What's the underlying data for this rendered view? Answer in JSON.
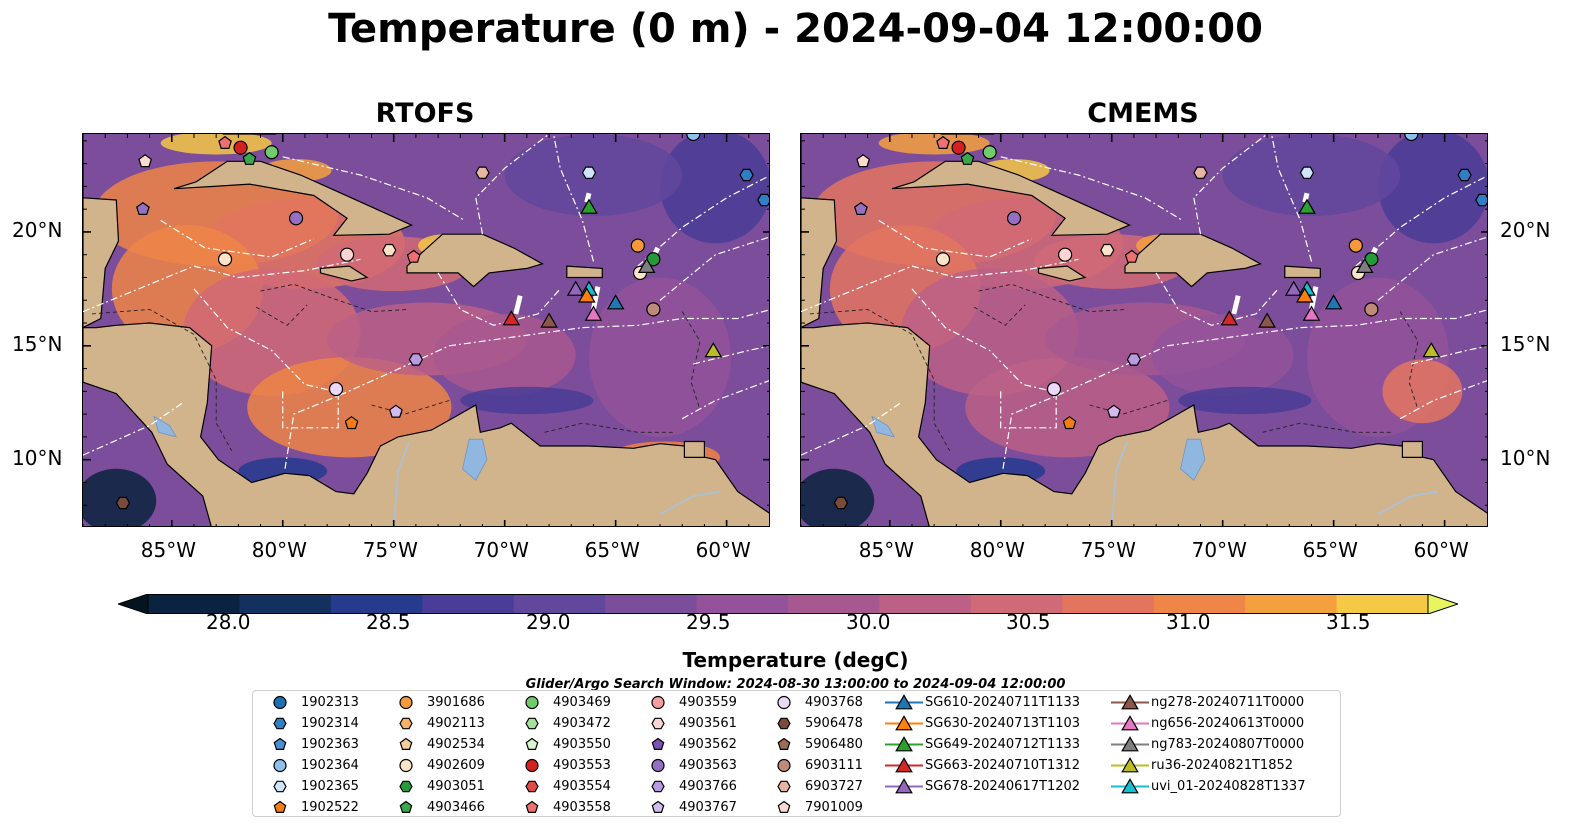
{
  "title": "Temperature (0 m) - 2024-09-04 12:00:00",
  "panels": [
    {
      "title": "RTOFS"
    },
    {
      "title": "CMEMS"
    }
  ],
  "lon_ticks": [
    "85°W",
    "80°W",
    "75°W",
    "70°W",
    "65°W",
    "60°W"
  ],
  "lat_ticks": [
    "20°N",
    "15°N",
    "10°N"
  ],
  "colorbar": {
    "label": "Temperature (degC)",
    "ticks": [
      "28.0",
      "28.5",
      "29.0",
      "29.5",
      "30.0",
      "30.5",
      "31.0",
      "31.5"
    ],
    "colors": [
      "#0a2340",
      "#14305e",
      "#263a8e",
      "#4a3d97",
      "#61489c",
      "#7b4d9b",
      "#93529a",
      "#a85891",
      "#bc6086",
      "#d16a77",
      "#e3755f",
      "#ef8547",
      "#f5a03e",
      "#f5c845"
    ],
    "under_color": "#041520",
    "over_color": "#e8f55e"
  },
  "search_window": "Glider/Argo Search Window: 2024-08-30 13:00:00 to 2024-09-04 12:00:00",
  "legend": {
    "columns": [
      [
        {
          "label": "1902313",
          "shape": "circle",
          "color": "#1f6fb4"
        },
        {
          "label": "1902314",
          "shape": "hexagon",
          "color": "#2f7fc4"
        },
        {
          "label": "1902363",
          "shape": "pentagon",
          "color": "#4a90d8"
        },
        {
          "label": "1902364",
          "shape": "circle",
          "color": "#8cc1ec"
        },
        {
          "label": "1902365",
          "shape": "hexagon",
          "color": "#d0e6f8"
        },
        {
          "label": "1902522",
          "shape": "pentagon",
          "color": "#f57c12"
        }
      ],
      [
        {
          "label": "3901686",
          "shape": "circle",
          "color": "#f59a3a"
        },
        {
          "label": "4902113",
          "shape": "hexagon",
          "color": "#f7b26a"
        },
        {
          "label": "4902534",
          "shape": "pentagon",
          "color": "#f8cc9a"
        },
        {
          "label": "4902609",
          "shape": "circle",
          "color": "#fde3c8"
        },
        {
          "label": "4903051",
          "shape": "hexagon",
          "color": "#249a38"
        },
        {
          "label": "4903466",
          "shape": "pentagon",
          "color": "#38a84a"
        }
      ],
      [
        {
          "label": "4903469",
          "shape": "circle",
          "color": "#70cc6a"
        },
        {
          "label": "4903472",
          "shape": "hexagon",
          "color": "#a5e09c"
        },
        {
          "label": "4903550",
          "shape": "pentagon",
          "color": "#d8f4d0"
        },
        {
          "label": "4903553",
          "shape": "circle",
          "color": "#d52020"
        },
        {
          "label": "4903554",
          "shape": "hexagon",
          "color": "#e04a4a"
        },
        {
          "label": "4903558",
          "shape": "pentagon",
          "color": "#ee7070"
        }
      ],
      [
        {
          "label": "4903559",
          "shape": "circle",
          "color": "#f5a0a0"
        },
        {
          "label": "4903561",
          "shape": "hexagon",
          "color": "#fbd4d4"
        },
        {
          "label": "4903562",
          "shape": "pentagon",
          "color": "#7b52b3"
        },
        {
          "label": "4903563",
          "shape": "circle",
          "color": "#9570c2"
        },
        {
          "label": "4903766",
          "shape": "hexagon",
          "color": "#b99be0"
        },
        {
          "label": "4903767",
          "shape": "pentagon",
          "color": "#d2bcee"
        }
      ],
      [
        {
          "label": "4903768",
          "shape": "circle",
          "color": "#ecd8f8"
        },
        {
          "label": "5906478",
          "shape": "hexagon",
          "color": "#7a4a3a"
        },
        {
          "label": "5906480",
          "shape": "pentagon",
          "color": "#9e6b58"
        },
        {
          "label": "6903111",
          "shape": "circle",
          "color": "#c08a7a"
        },
        {
          "label": "6903727",
          "shape": "hexagon",
          "color": "#e8b4a4"
        },
        {
          "label": "7901009",
          "shape": "pentagon",
          "color": "#fcdcd0"
        }
      ],
      [
        {
          "label": "SG610-20240711T1133",
          "shape": "triangle",
          "color": "#1f77b4",
          "line": true
        },
        {
          "label": "SG630-20240713T1103",
          "shape": "triangle",
          "color": "#ff7f0e",
          "line": true
        },
        {
          "label": "SG649-20240712T1133",
          "shape": "triangle",
          "color": "#2ca02c",
          "line": true
        },
        {
          "label": "SG663-20240710T1312",
          "shape": "triangle",
          "color": "#d62728",
          "line": true
        },
        {
          "label": "SG678-20240617T1202",
          "shape": "triangle",
          "color": "#9467bd",
          "line": true
        }
      ],
      [
        {
          "label": "ng278-20240711T0000",
          "shape": "triangle",
          "color": "#8c564b",
          "line": true
        },
        {
          "label": "ng656-20240613T0000",
          "shape": "triangle",
          "color": "#e377c2",
          "line": true
        },
        {
          "label": "ng783-20240807T0000",
          "shape": "triangle",
          "color": "#7f7f7f",
          "line": true
        },
        {
          "label": "ru36-20240821T1852",
          "shape": "triangle",
          "color": "#bcbd22",
          "line": true
        },
        {
          "label": "uvi_01-20240828T1337",
          "shape": "triangle",
          "color": "#17becf",
          "line": true
        }
      ]
    ]
  },
  "argo_floats": [
    {
      "lon": -82.6,
      "lat": 23.9,
      "color": "#ee7070",
      "shape": "pentagon"
    },
    {
      "lon": -81.9,
      "lat": 23.7,
      "color": "#d52020",
      "shape": "circle"
    },
    {
      "lon": -80.5,
      "lat": 23.5,
      "color": "#70cc6a",
      "shape": "circle"
    },
    {
      "lon": -81.5,
      "lat": 23.2,
      "color": "#38a84a",
      "shape": "pentagon"
    },
    {
      "lon": -86.2,
      "lat": 23.1,
      "color": "#fcdcd0",
      "shape": "pentagon"
    },
    {
      "lon": -86.3,
      "lat": 21.0,
      "color": "#9570c2",
      "shape": "pentagon"
    },
    {
      "lon": -79.4,
      "lat": 20.6,
      "color": "#9570c2",
      "shape": "circle"
    },
    {
      "lon": -82.6,
      "lat": 18.8,
      "color": "#fde3c8",
      "shape": "circle"
    },
    {
      "lon": -77.1,
      "lat": 19.0,
      "color": "#fbd4d4",
      "shape": "circle"
    },
    {
      "lon": -75.2,
      "lat": 19.2,
      "color": "#fde3c8",
      "shape": "hexagon"
    },
    {
      "lon": -74.1,
      "lat": 18.9,
      "color": "#ee7070",
      "shape": "pentagon"
    },
    {
      "lon": -71.0,
      "lat": 22.6,
      "color": "#e8b4a4",
      "shape": "hexagon"
    },
    {
      "lon": -66.2,
      "lat": 22.6,
      "color": "#d0e6f8",
      "shape": "hexagon"
    },
    {
      "lon": -64.0,
      "lat": 19.4,
      "color": "#f59a3a",
      "shape": "circle"
    },
    {
      "lon": -63.9,
      "lat": 18.2,
      "color": "#fde3c8",
      "shape": "circle"
    },
    {
      "lon": -63.3,
      "lat": 18.8,
      "color": "#249a38",
      "shape": "circle"
    },
    {
      "lon": -63.3,
      "lat": 16.6,
      "color": "#c08a7a",
      "shape": "circle"
    },
    {
      "lon": -74.0,
      "lat": 14.4,
      "color": "#b99be0",
      "shape": "hexagon"
    },
    {
      "lon": -77.6,
      "lat": 13.1,
      "color": "#ecd8f8",
      "shape": "circle"
    },
    {
      "lon": -74.9,
      "lat": 12.1,
      "color": "#d2bcee",
      "shape": "pentagon"
    },
    {
      "lon": -76.9,
      "lat": 11.6,
      "color": "#f57c12",
      "shape": "pentagon"
    },
    {
      "lon": -87.2,
      "lat": 8.1,
      "color": "#7a4a3a",
      "shape": "hexagon"
    },
    {
      "lon": -61.5,
      "lat": 24.3,
      "color": "#8cc1ec",
      "shape": "circle"
    },
    {
      "lon": -59.1,
      "lat": 22.5,
      "color": "#2f7fc4",
      "shape": "hexagon"
    },
    {
      "lon": -58.3,
      "lat": 21.4,
      "color": "#2f7fc4",
      "shape": "hexagon"
    }
  ],
  "gliders": [
    {
      "lon": -66.2,
      "lat": 21.1,
      "color": "#2ca02c"
    },
    {
      "lon": -63.6,
      "lat": 18.5,
      "color": "#7f7f7f"
    },
    {
      "lon": -66.8,
      "lat": 17.5,
      "color": "#9467bd"
    },
    {
      "lon": -66.2,
      "lat": 17.5,
      "color": "#17becf"
    },
    {
      "lon": -66.3,
      "lat": 17.2,
      "color": "#ff7f0e"
    },
    {
      "lon": -65.0,
      "lat": 16.9,
      "color": "#1f77b4"
    },
    {
      "lon": -66.0,
      "lat": 16.4,
      "color": "#e377c2"
    },
    {
      "lon": -69.7,
      "lat": 16.2,
      "color": "#d62728"
    },
    {
      "lon": -68.0,
      "lat": 16.1,
      "color": "#8c564b"
    },
    {
      "lon": -60.6,
      "lat": 14.8,
      "color": "#bcbd22"
    }
  ]
}
